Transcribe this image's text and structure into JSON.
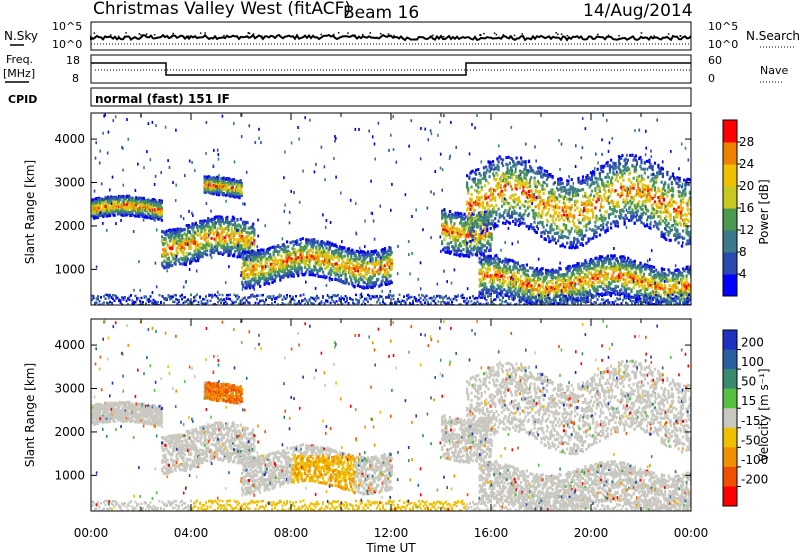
{
  "header": {
    "station": "Christmas Valley West (fitACF)",
    "beam": "Beam 16",
    "date": "14/Aug/2014"
  },
  "summary": {
    "nsky_label": "N.Sky",
    "nsky_ticks": [
      "10^5",
      "10^0"
    ],
    "nsearch_label": "N.Search",
    "nsearch_ticks": [
      "10^5",
      "10^0"
    ],
    "freq_label_1": "Freq.",
    "freq_label_2": "[MHz]",
    "freq_ticks": [
      "18",
      "8"
    ],
    "nave_label": "Nave",
    "nave_ticks": [
      "60",
      "0"
    ],
    "cpid_label": "CPID",
    "cpid_text": "normal (fast) 151 IF"
  },
  "chart_data": [
    {
      "type": "heatmap",
      "name": "power",
      "ylabel": "Slant Range [km]",
      "xlabel": "Time UT",
      "xlim": [
        0,
        24
      ],
      "ylim": [
        180,
        4600
      ],
      "x_ticks": [
        "00:00",
        "04:00",
        "08:00",
        "12:00",
        "16:00",
        "20:00",
        "00:00"
      ],
      "y_ticks": [
        1000,
        2000,
        3000,
        4000
      ],
      "colorbar": {
        "label": "Power [dB]",
        "ticks": [
          "4",
          "8",
          "12",
          "16",
          "20",
          "24",
          "28"
        ],
        "colors": [
          "#0000ff",
          "#2a4ab0",
          "#3a7a8a",
          "#4c9a50",
          "#c8c820",
          "#f0c000",
          "#f08000",
          "#ff0000"
        ]
      },
      "echo_bands": [
        {
          "t": [
            0.0,
            2.8
          ],
          "range": [
            2200,
            2650
          ]
        },
        {
          "t": [
            2.8,
            6.5
          ],
          "range": [
            1200,
            2100
          ]
        },
        {
          "t": [
            4.5,
            6.0
          ],
          "range": [
            2700,
            3100
          ]
        },
        {
          "t": [
            6.0,
            12.0
          ],
          "range": [
            750,
            1600
          ]
        },
        {
          "t": [
            14.0,
            16.0
          ],
          "range": [
            1500,
            2500
          ]
        },
        {
          "t": [
            15.0,
            24.0
          ],
          "range": [
            1800,
            3400
          ]
        },
        {
          "t": [
            15.5,
            24.0
          ],
          "range": [
            300,
            1200
          ]
        }
      ]
    },
    {
      "type": "heatmap",
      "name": "velocity",
      "ylabel": "Slant Range [km]",
      "xlabel": "Time UT",
      "xlim": [
        0,
        24
      ],
      "ylim": [
        180,
        4600
      ],
      "x_ticks": [
        "00:00",
        "04:00",
        "08:00",
        "12:00",
        "16:00",
        "20:00",
        "00:00"
      ],
      "y_ticks": [
        1000,
        2000,
        3000,
        4000
      ],
      "colorbar": {
        "label": "Velocity [m s⁻¹]",
        "ticks": [
          "200",
          "100",
          "50",
          "15",
          "-15",
          "-50",
          "-100",
          "-200"
        ],
        "colors": [
          "#2030c0",
          "#2a60a0",
          "#3a8a70",
          "#58c040",
          "#c8c8c0",
          "#f0c000",
          "#f09000",
          "#f05000",
          "#ff0000"
        ]
      }
    }
  ]
}
